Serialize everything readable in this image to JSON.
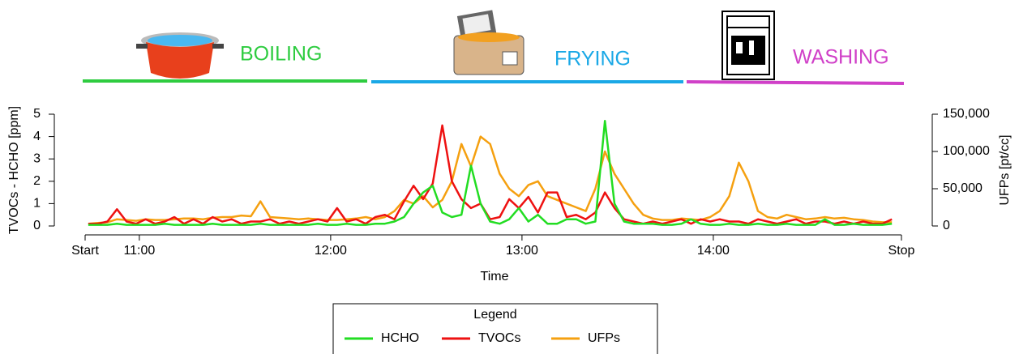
{
  "phases": [
    {
      "label": "BOILING",
      "color": "#2ecc40"
    },
    {
      "label": "FRYING",
      "color": "#1aa8e6"
    },
    {
      "label": "WASHING",
      "color": "#d040c8"
    }
  ],
  "chart_data": {
    "type": "line",
    "xlabel": "Time",
    "ylabel": "TVOCs - HCHO [ppm]",
    "y2label": "UFPs [pt/cc]",
    "xlim": [
      643,
      899
    ],
    "xticks": [
      {
        "value": 643,
        "label": "Start"
      },
      {
        "value": 660,
        "label": "11:00"
      },
      {
        "value": 720,
        "label": "12:00"
      },
      {
        "value": 780,
        "label": "13:00"
      },
      {
        "value": 840,
        "label": "14:00"
      },
      {
        "value": 899,
        "label": "Stop"
      }
    ],
    "ylim": [
      0,
      5
    ],
    "yticks": [
      0,
      1,
      2,
      3,
      4,
      5
    ],
    "y2lim": [
      0,
      150000
    ],
    "y2ticks": [
      0,
      {
        "value": 50000,
        "label": "50,000"
      },
      {
        "value": 100000,
        "label": "100,000"
      },
      {
        "value": 150000,
        "label": "150,000"
      }
    ],
    "legend_title": "Legend",
    "x": [
      644,
      647,
      650,
      653,
      656,
      659,
      662,
      665,
      668,
      671,
      674,
      677,
      680,
      683,
      686,
      689,
      692,
      695,
      698,
      701,
      704,
      707,
      710,
      713,
      716,
      719,
      722,
      725,
      728,
      731,
      734,
      737,
      740,
      743,
      746,
      749,
      752,
      755,
      758,
      761,
      764,
      767,
      770,
      773,
      776,
      779,
      782,
      785,
      788,
      791,
      794,
      797,
      800,
      803,
      806,
      809,
      812,
      815,
      818,
      821,
      824,
      827,
      830,
      833,
      836,
      839,
      842,
      845,
      848,
      851,
      854,
      857,
      860,
      863,
      866,
      869,
      872,
      875,
      878,
      881,
      884,
      887,
      890,
      893,
      896
    ],
    "series": [
      {
        "name": "HCHO",
        "color": "#22dd22",
        "values": [
          0.05,
          0.05,
          0.05,
          0.1,
          0.05,
          0.05,
          0.05,
          0.05,
          0.1,
          0.05,
          0.05,
          0.05,
          0.05,
          0.1,
          0.05,
          0.05,
          0.05,
          0.05,
          0.1,
          0.05,
          0.05,
          0.05,
          0.05,
          0.05,
          0.1,
          0.05,
          0.05,
          0.1,
          0.05,
          0.05,
          0.1,
          0.1,
          0.2,
          0.4,
          1.0,
          1.5,
          1.8,
          0.6,
          0.4,
          0.5,
          2.7,
          1.0,
          0.2,
          0.1,
          0.3,
          0.8,
          0.2,
          0.5,
          0.1,
          0.1,
          0.3,
          0.3,
          0.1,
          0.2,
          4.7,
          1.0,
          0.2,
          0.1,
          0.1,
          0.1,
          0.05,
          0.05,
          0.1,
          0.3,
          0.1,
          0.05,
          0.05,
          0.1,
          0.05,
          0.05,
          0.1,
          0.05,
          0.05,
          0.1,
          0.05,
          0.05,
          0.05,
          0.3,
          0.05,
          0.05,
          0.1,
          0.05,
          0.05,
          0.05,
          0.1
        ]
      },
      {
        "name": "TVOCs",
        "color": "#ee1111",
        "values": [
          0.1,
          0.1,
          0.2,
          0.75,
          0.2,
          0.1,
          0.3,
          0.1,
          0.2,
          0.4,
          0.1,
          0.3,
          0.1,
          0.4,
          0.2,
          0.3,
          0.1,
          0.2,
          0.2,
          0.3,
          0.1,
          0.2,
          0.1,
          0.2,
          0.3,
          0.2,
          0.8,
          0.2,
          0.3,
          0.1,
          0.4,
          0.5,
          0.3,
          1.1,
          1.8,
          1.2,
          1.9,
          4.5,
          2.0,
          1.2,
          0.8,
          1.0,
          0.3,
          0.4,
          1.2,
          0.8,
          1.3,
          0.6,
          1.5,
          1.5,
          0.4,
          0.5,
          0.3,
          0.6,
          1.5,
          0.8,
          0.3,
          0.2,
          0.1,
          0.2,
          0.1,
          0.2,
          0.3,
          0.1,
          0.3,
          0.2,
          0.3,
          0.2,
          0.2,
          0.1,
          0.3,
          0.2,
          0.1,
          0.2,
          0.3,
          0.1,
          0.2,
          0.2,
          0.1,
          0.2,
          0.1,
          0.2,
          0.1,
          0.1,
          0.3
        ]
      },
      {
        "name": "UFPs",
        "color": "#f5a010",
        "axis": "y2",
        "values": [
          3000,
          4000,
          5000,
          9000,
          8000,
          7000,
          9000,
          8000,
          8000,
          9000,
          10000,
          10000,
          9000,
          11000,
          12000,
          12000,
          14000,
          13000,
          33000,
          12000,
          11000,
          10000,
          9000,
          10000,
          9000,
          8000,
          8000,
          9000,
          10000,
          12000,
          9000,
          12000,
          20000,
          35000,
          30000,
          40000,
          25000,
          35000,
          60000,
          110000,
          80000,
          120000,
          110000,
          70000,
          50000,
          40000,
          55000,
          60000,
          40000,
          35000,
          30000,
          25000,
          20000,
          50000,
          100000,
          70000,
          50000,
          30000,
          15000,
          10000,
          8000,
          8000,
          10000,
          9000,
          8000,
          12000,
          20000,
          40000,
          85000,
          60000,
          20000,
          12000,
          10000,
          15000,
          12000,
          9000,
          10000,
          12000,
          10000,
          11000,
          9000,
          8000,
          6000,
          5000,
          5000
        ]
      }
    ]
  }
}
